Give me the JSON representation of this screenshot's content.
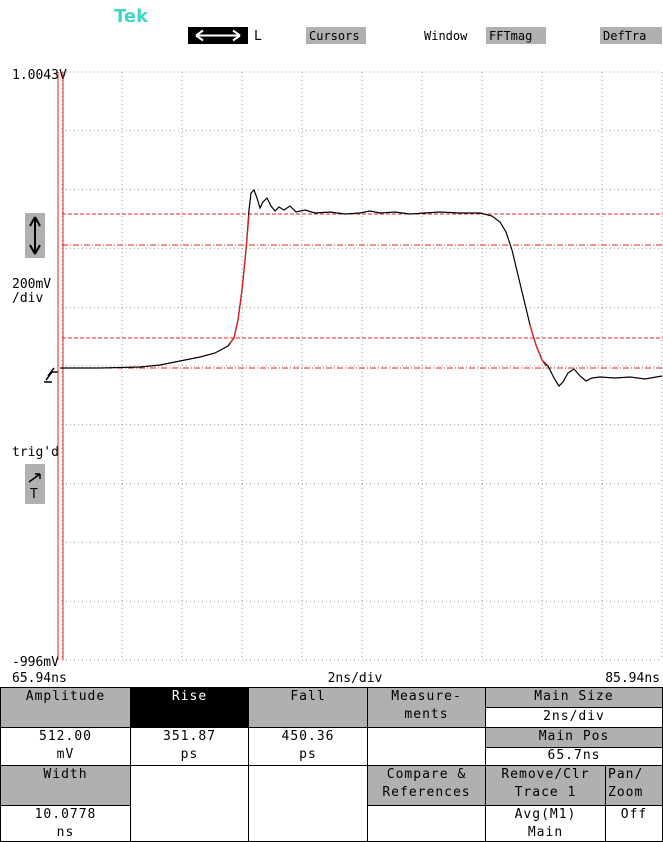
{
  "top_bar": {
    "logo": "Tek",
    "ref": "L",
    "menu": [
      "Cursors",
      "Window",
      "FFTmag",
      "DefTra"
    ]
  },
  "scale": {
    "top": "1.0043V",
    "volts_per_div": "200mV",
    "per_div": "/div",
    "bottom": "-996mV",
    "trigger": "trig'd",
    "trigger_source": "T",
    "time_start": "65.94ns",
    "time_per_div": "2ns/div",
    "time_end": "85.94ns"
  },
  "panel": {
    "amplitude": {
      "label": "Amplitude",
      "value": "512.00",
      "unit": "mV"
    },
    "rise": {
      "label": "Rise",
      "value": "351.87",
      "unit": "ps"
    },
    "fall": {
      "label": "Fall",
      "value": "450.36",
      "unit": "ps"
    },
    "width": {
      "label": "Width",
      "value": "10.0778",
      "unit": "ns"
    },
    "measurements": [
      "Measure-",
      "ments"
    ],
    "compare": [
      "Compare &",
      "References"
    ],
    "main_size": {
      "label": "Main Size",
      "value": "2ns/div"
    },
    "main_pos": {
      "label": "Main Pos",
      "value": "65.7ns"
    },
    "remove": {
      "label": [
        "Remove/Clr",
        "Trace 1"
      ],
      "value": [
        "Avg(M1)",
        "Main"
      ]
    },
    "pan_zoom": {
      "label": [
        "Pan/",
        "Zoom"
      ],
      "value": "Off"
    }
  }
}
